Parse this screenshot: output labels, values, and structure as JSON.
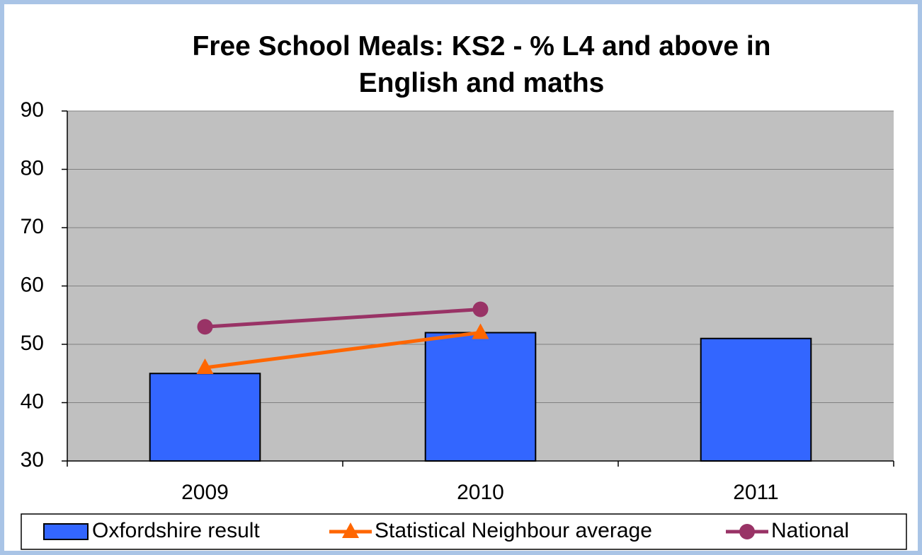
{
  "chart_data": {
    "type": "bar",
    "title": "Free School Meals: KS2 - % L4 and above in English and maths",
    "categories": [
      "2009",
      "2010",
      "2011"
    ],
    "series": [
      {
        "name": "Oxfordshire result",
        "type": "bar",
        "color": "#3366ff",
        "values": [
          45,
          52,
          51
        ]
      },
      {
        "name": "Statistical Neighbour average",
        "type": "line",
        "marker": "triangle",
        "color": "#ff6600",
        "values": [
          46,
          52,
          null
        ]
      },
      {
        "name": "National",
        "type": "line",
        "marker": "circle",
        "color": "#993366",
        "values": [
          53,
          56,
          null
        ]
      }
    ],
    "ylim": [
      30,
      90
    ],
    "yticks": [
      30,
      40,
      50,
      60,
      70,
      80,
      90
    ],
    "grid": true,
    "legend": "bottom"
  }
}
